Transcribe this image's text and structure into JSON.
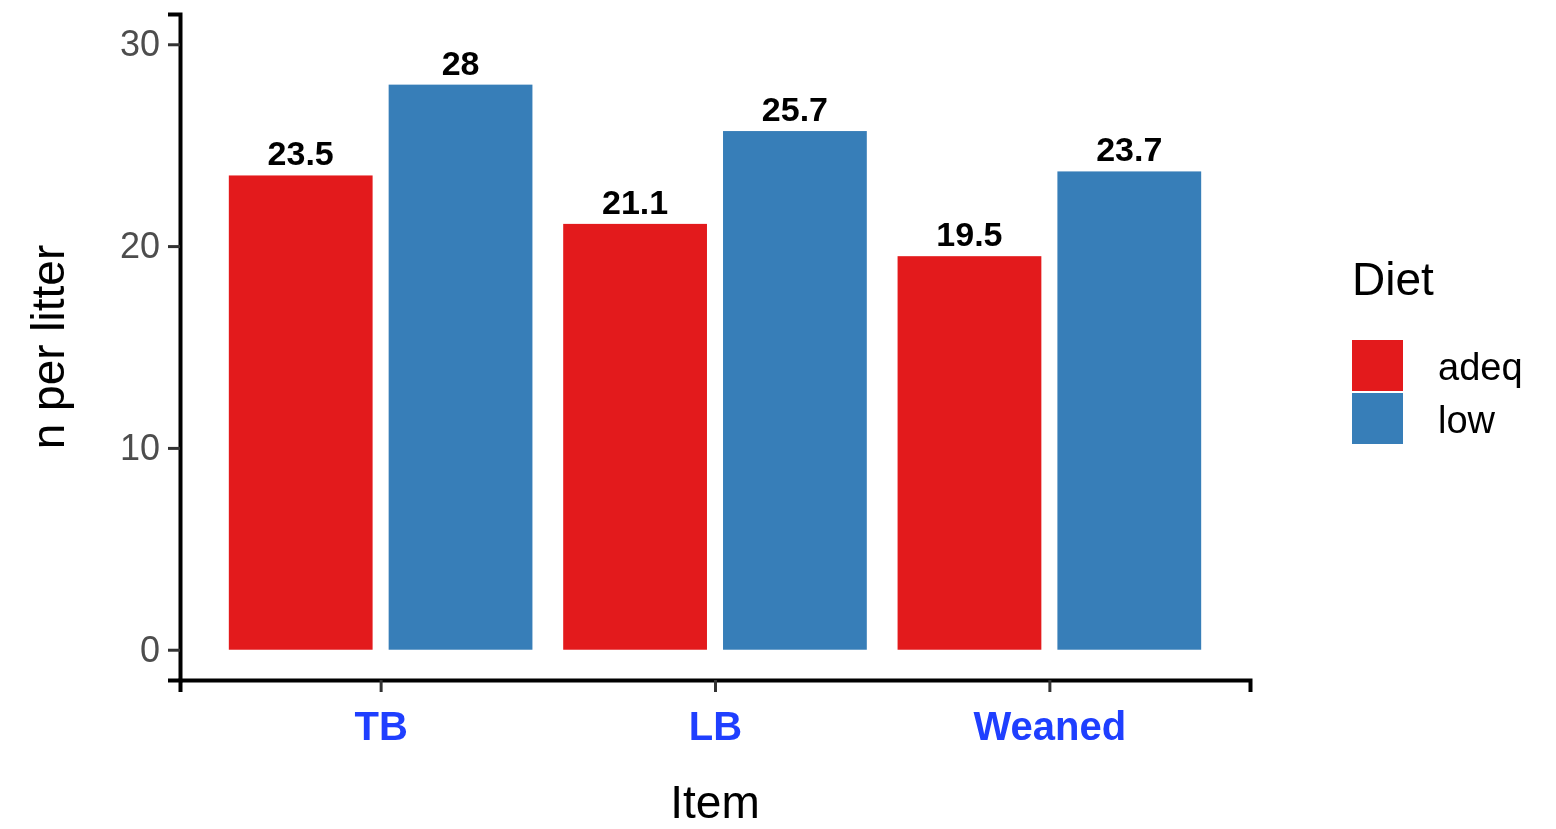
{
  "chart_data": {
    "type": "bar",
    "xlabel": "Item",
    "ylabel": "n per litter",
    "legend_title": "Diet",
    "categories": [
      "TB",
      "LB",
      "Weaned"
    ],
    "series": [
      {
        "name": "adeq",
        "color": "#e31a1c",
        "values": [
          23.5,
          21.1,
          19.5
        ]
      },
      {
        "name": "low",
        "color": "#377eb8",
        "values": [
          28,
          25.7,
          23.7
        ]
      }
    ],
    "ylim": [
      -1.5,
      31.5
    ],
    "yticks": [
      0,
      10,
      20,
      30
    ],
    "data_labels": true,
    "legend": "right",
    "grid": false
  }
}
